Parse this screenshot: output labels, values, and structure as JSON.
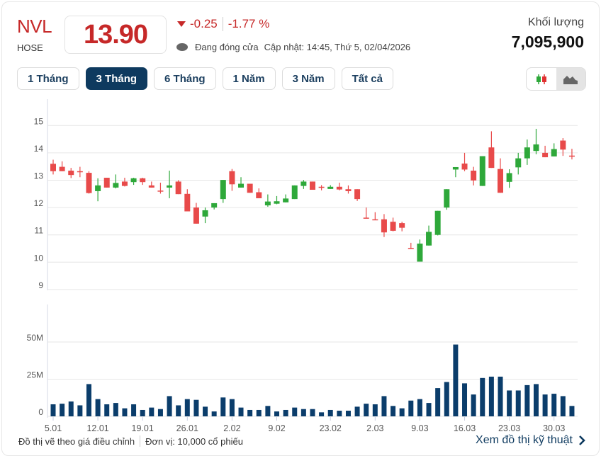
{
  "header": {
    "ticker": "NVL",
    "exchange": "HOSE",
    "price": "13.90",
    "change": "-0.25",
    "change_pct": "-1.77 %",
    "status": "Đang đóng cửa",
    "updated": "Cập nhật: 14:45, Thứ 5, 02/04/2026",
    "volume_label": "Khối lượng",
    "volume_value": "7,095,900"
  },
  "ranges": [
    {
      "label": "1 Tháng",
      "active": false
    },
    {
      "label": "3 Tháng",
      "active": true
    },
    {
      "label": "6 Tháng",
      "active": false
    },
    {
      "label": "1 Năm",
      "active": false
    },
    {
      "label": "3 Năm",
      "active": false
    },
    {
      "label": "Tất cả",
      "active": false
    }
  ],
  "chart_type": {
    "candle_icon": "candlestick-icon",
    "area_icon": "area-chart-icon",
    "selected": "area"
  },
  "colors": {
    "up": "#2ea83a",
    "down": "#e84a4a",
    "volume": "#0b3d6b",
    "accent": "#0e3a5f",
    "price": "#c62828"
  },
  "chart_data": {
    "type": "candlestick",
    "price_axis": {
      "ticks": [
        "15",
        "14",
        "13",
        "12",
        "11",
        "10",
        "9"
      ],
      "range": [
        9,
        15
      ]
    },
    "volume_axis": {
      "ticks": [
        "50M",
        "25M",
        "0"
      ],
      "range": [
        0,
        50
      ]
    },
    "x_labels": [
      {
        "label": "5.01",
        "index": 0
      },
      {
        "label": "12.01",
        "index": 5
      },
      {
        "label": "19.01",
        "index": 10
      },
      {
        "label": "26.01",
        "index": 15
      },
      {
        "label": "2.02",
        "index": 20
      },
      {
        "label": "9.02",
        "index": 25
      },
      {
        "label": "23.02",
        "index": 31
      },
      {
        "label": "2.03",
        "index": 36
      },
      {
        "label": "9.03",
        "index": 41
      },
      {
        "label": "16.03",
        "index": 46
      },
      {
        "label": "23.03",
        "index": 51
      },
      {
        "label": "30.03",
        "index": 56
      }
    ],
    "ohlc": [
      [
        13.6,
        13.75,
        13.21,
        13.33
      ],
      [
        13.49,
        13.69,
        13.33,
        13.33
      ],
      [
        13.35,
        13.45,
        13.08,
        13.19
      ],
      [
        13.33,
        13.49,
        13.11,
        13.3
      ],
      [
        13.27,
        13.33,
        12.51,
        12.53
      ],
      [
        12.6,
        13.07,
        12.23,
        12.81
      ],
      [
        13.09,
        13.09,
        12.73,
        12.73
      ],
      [
        12.73,
        13.21,
        12.7,
        12.9
      ],
      [
        12.95,
        13.09,
        12.77,
        12.79
      ],
      [
        12.93,
        13.09,
        12.83,
        13.07
      ],
      [
        13.07,
        13.09,
        12.83,
        12.93
      ],
      [
        12.81,
        12.95,
        12.73,
        12.73
      ],
      [
        12.62,
        12.91,
        12.51,
        12.6
      ],
      [
        12.73,
        13.35,
        12.34,
        12.81
      ],
      [
        12.95,
        13.0,
        12.49,
        12.49
      ],
      [
        12.5,
        12.67,
        11.86,
        11.86
      ],
      [
        12.0,
        12.17,
        11.41,
        11.41
      ],
      [
        11.67,
        12.0,
        11.43,
        11.9
      ],
      [
        12.0,
        12.16,
        11.93,
        12.16
      ],
      [
        12.31,
        13.01,
        12.17,
        13.01
      ],
      [
        13.33,
        13.41,
        12.61,
        12.85
      ],
      [
        12.73,
        13.11,
        12.73,
        12.87
      ],
      [
        12.87,
        12.87,
        12.54,
        12.54
      ],
      [
        12.56,
        12.7,
        12.34,
        12.34
      ],
      [
        12.08,
        12.48,
        12.03,
        12.22
      ],
      [
        12.14,
        12.42,
        12.12,
        12.23
      ],
      [
        12.19,
        12.48,
        12.19,
        12.33
      ],
      [
        12.31,
        12.81,
        12.31,
        12.81
      ],
      [
        12.79,
        13.01,
        12.68,
        12.95
      ],
      [
        12.95,
        12.95,
        12.65,
        12.65
      ],
      [
        12.76,
        12.82,
        12.63,
        12.74
      ],
      [
        12.68,
        12.82,
        12.68,
        12.76
      ],
      [
        12.76,
        12.91,
        12.63,
        12.66
      ],
      [
        12.67,
        12.81,
        12.51,
        12.6
      ],
      [
        12.67,
        12.67,
        12.24,
        12.31
      ],
      [
        11.63,
        12.0,
        11.6,
        11.62
      ],
      [
        11.57,
        11.83,
        11.55,
        11.55
      ],
      [
        11.57,
        11.76,
        10.92,
        11.09
      ],
      [
        11.48,
        11.63,
        11.13,
        11.15
      ],
      [
        11.43,
        11.48,
        11.13,
        11.26
      ],
      [
        10.52,
        10.71,
        10.51,
        10.51
      ],
      [
        10.02,
        10.83,
        10.02,
        10.68
      ],
      [
        10.61,
        11.34,
        10.61,
        11.11
      ],
      [
        11.0,
        11.88,
        10.98,
        11.88
      ],
      [
        12.0,
        12.67,
        11.92,
        12.67
      ],
      [
        13.39,
        13.48,
        13.11,
        13.48
      ],
      [
        13.61,
        14.0,
        13.33,
        13.39
      ],
      [
        13.35,
        13.49,
        12.81,
        12.99
      ],
      [
        12.79,
        13.88,
        12.79,
        13.88
      ],
      [
        14.2,
        14.79,
        13.45,
        13.45
      ],
      [
        13.41,
        13.8,
        12.54,
        12.54
      ],
      [
        12.94,
        13.4,
        12.72,
        13.26
      ],
      [
        13.47,
        14.0,
        13.21,
        13.8
      ],
      [
        13.8,
        14.49,
        13.56,
        14.2
      ],
      [
        14.07,
        14.88,
        13.95,
        14.31
      ],
      [
        14.0,
        14.26,
        13.84,
        13.84
      ],
      [
        13.87,
        14.35,
        13.87,
        14.14
      ],
      [
        14.45,
        14.54,
        13.89,
        14.12
      ],
      [
        13.9,
        14.15,
        13.76,
        13.88
      ]
    ],
    "volume_millions": [
      8.1,
      8.5,
      10.0,
      7.4,
      21.7,
      11.6,
      8.1,
      9.0,
      5.4,
      8.1,
      4.3,
      5.9,
      4.9,
      13.6,
      7.4,
      11.6,
      11.1,
      6.5,
      3.3,
      12.7,
      11.6,
      5.9,
      4.3,
      4.3,
      7.0,
      3.3,
      4.3,
      5.9,
      4.9,
      4.9,
      2.7,
      4.3,
      3.8,
      3.8,
      6.5,
      8.5,
      8.1,
      13.6,
      7.0,
      5.4,
      10.6,
      11.6,
      9.0,
      19.0,
      23.1,
      48.3,
      22.2,
      14.7,
      25.8,
      26.7,
      26.7,
      17.4,
      17.4,
      21.0,
      21.7,
      14.7,
      15.2,
      13.6,
      7.0
    ]
  },
  "footer": {
    "note": "Đồ thị vẽ theo giá điều chỉnh",
    "unit": "Đơn vị: 10,000 cổ phiếu",
    "tech_link": "Xem đồ thị kỹ thuật"
  }
}
